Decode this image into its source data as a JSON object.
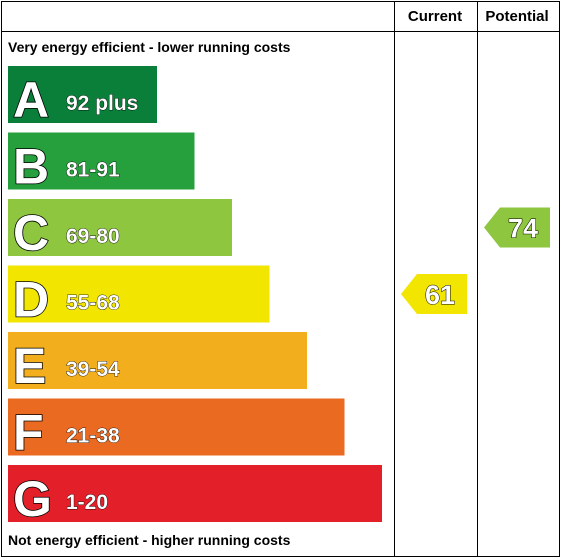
{
  "header": {
    "current_label": "Current",
    "potential_label": "Potential"
  },
  "captions": {
    "top": "Very energy efficient - lower running costs",
    "bottom": "Not energy efficient - higher running costs"
  },
  "chart_data": {
    "type": "bar",
    "bands": [
      {
        "letter": "A",
        "range": "92 plus",
        "color": "#0a7f3a"
      },
      {
        "letter": "B",
        "range": "81-91",
        "color": "#26a03d"
      },
      {
        "letter": "C",
        "range": "69-80",
        "color": "#8ec63f"
      },
      {
        "letter": "D",
        "range": "55-68",
        "color": "#f2e600"
      },
      {
        "letter": "E",
        "range": "39-54",
        "color": "#f2ae1c"
      },
      {
        "letter": "F",
        "range": "21-38",
        "color": "#ea6a22"
      },
      {
        "letter": "G",
        "range": "1-20",
        "color": "#e3202a"
      }
    ],
    "current": {
      "value": 61,
      "band": "D",
      "color": "#f2e600"
    },
    "potential": {
      "value": 74,
      "band": "C",
      "color": "#8ec63f"
    }
  }
}
